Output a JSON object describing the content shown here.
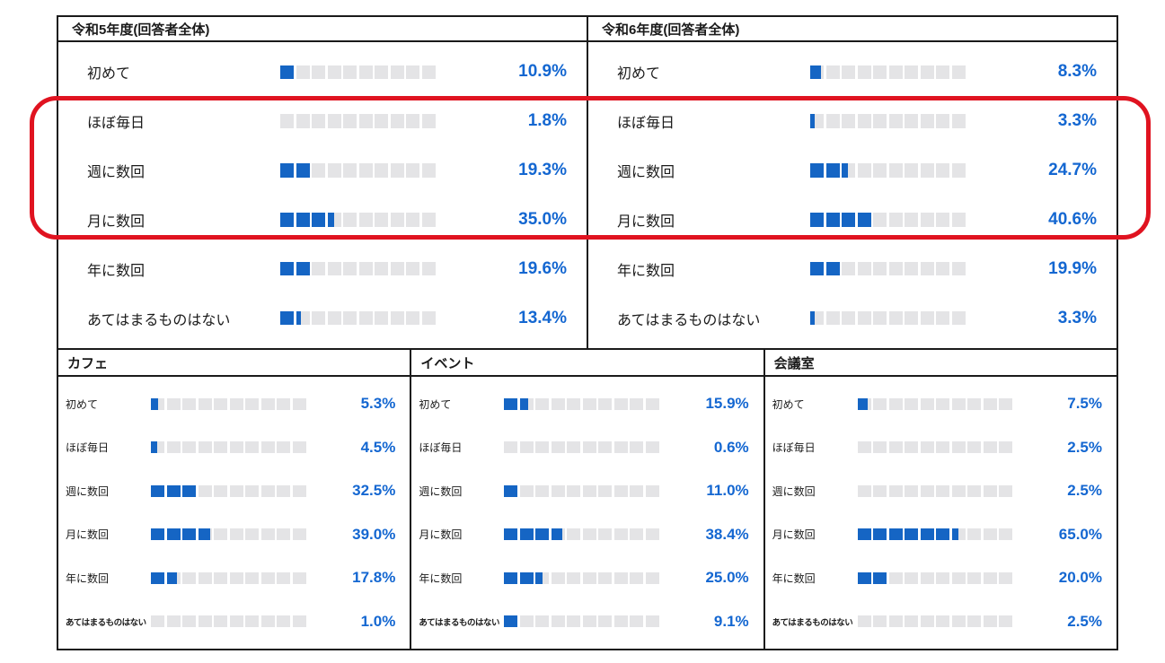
{
  "colors": {
    "bar_fill": "#1565c4",
    "bar_empty": "#e4e4e6",
    "percent_text": "#1467d1",
    "border": "#1a1a1a",
    "highlight_ring": "#e01320",
    "background": "#ffffff"
  },
  "categories": [
    "初めて",
    "ほぼ毎日",
    "週に数回",
    "月に数回",
    "年に数回",
    "あてはまるものはない"
  ],
  "panels_top": [
    {
      "title": "令和5年度(回答者全体)",
      "values": [
        10.9,
        1.8,
        19.3,
        35.0,
        19.6,
        13.4
      ],
      "labels": [
        "10.9%",
        "1.8%",
        "19.3%",
        "35.0%",
        "19.6%",
        "13.4%"
      ]
    },
    {
      "title": "令和6年度(回答者全体)",
      "values": [
        8.3,
        3.3,
        24.7,
        40.6,
        19.9,
        3.3
      ],
      "labels": [
        "8.3%",
        "3.3%",
        "24.7%",
        "40.6%",
        "19.9%",
        "3.3%"
      ]
    }
  ],
  "panels_bottom": [
    {
      "title": "カフェ",
      "values": [
        5.3,
        4.5,
        32.5,
        39.0,
        17.8,
        1.0
      ],
      "labels": [
        "5.3%",
        "4.5%",
        "32.5%",
        "39.0%",
        "17.8%",
        "1.0%"
      ]
    },
    {
      "title": "イベント",
      "values": [
        15.9,
        0.6,
        11.0,
        38.4,
        25.0,
        9.1
      ],
      "labels": [
        "15.9%",
        "0.6%",
        "11.0%",
        "38.4%",
        "25.0%",
        "9.1%"
      ]
    },
    {
      "title": "会議室",
      "values": [
        7.5,
        2.5,
        2.5,
        65.0,
        20.0,
        2.5
      ],
      "labels": [
        "7.5%",
        "2.5%",
        "2.5%",
        "65.0%",
        "20.0%",
        "2.5%"
      ]
    }
  ],
  "highlight": {
    "highlighted_rows": [
      "ほぼ毎日",
      "週に数回",
      "月に数回"
    ],
    "applies_to": [
      "令和5年度(回答者全体)",
      "令和6年度(回答者全体)"
    ],
    "color": "#e01320"
  },
  "chart_data": [
    {
      "type": "bar",
      "title": "令和5年度(回答者全体)",
      "categories": [
        "初めて",
        "ほぼ毎日",
        "週に数回",
        "月に数回",
        "年に数回",
        "あてはまるものはない"
      ],
      "values": [
        10.9,
        1.8,
        19.3,
        35.0,
        19.6,
        13.4
      ],
      "unit": "%",
      "xlim": [
        0,
        100
      ],
      "segments_per_bar": 10,
      "orientation": "horizontal"
    },
    {
      "type": "bar",
      "title": "令和6年度(回答者全体)",
      "categories": [
        "初めて",
        "ほぼ毎日",
        "週に数回",
        "月に数回",
        "年に数回",
        "あてはまるものはない"
      ],
      "values": [
        8.3,
        3.3,
        24.7,
        40.6,
        19.9,
        3.3
      ],
      "unit": "%",
      "xlim": [
        0,
        100
      ],
      "segments_per_bar": 10,
      "orientation": "horizontal"
    },
    {
      "type": "bar",
      "title": "カフェ",
      "categories": [
        "初めて",
        "ほぼ毎日",
        "週に数回",
        "月に数回",
        "年に数回",
        "あてはまるものはない"
      ],
      "values": [
        5.3,
        4.5,
        32.5,
        39.0,
        17.8,
        1.0
      ],
      "unit": "%",
      "xlim": [
        0,
        100
      ],
      "segments_per_bar": 10,
      "orientation": "horizontal"
    },
    {
      "type": "bar",
      "title": "イベント",
      "categories": [
        "初めて",
        "ほぼ毎日",
        "週に数回",
        "月に数回",
        "年に数回",
        "あてはまるものはない"
      ],
      "values": [
        15.9,
        0.6,
        11.0,
        38.4,
        25.0,
        9.1
      ],
      "unit": "%",
      "xlim": [
        0,
        100
      ],
      "segments_per_bar": 10,
      "orientation": "horizontal"
    },
    {
      "type": "bar",
      "title": "会議室",
      "categories": [
        "初めて",
        "ほぼ毎日",
        "週に数回",
        "月に数回",
        "年に数回",
        "あてはまるものはない"
      ],
      "values": [
        7.5,
        2.5,
        2.5,
        65.0,
        20.0,
        2.5
      ],
      "unit": "%",
      "xlim": [
        0,
        100
      ],
      "segments_per_bar": 10,
      "orientation": "horizontal"
    }
  ]
}
